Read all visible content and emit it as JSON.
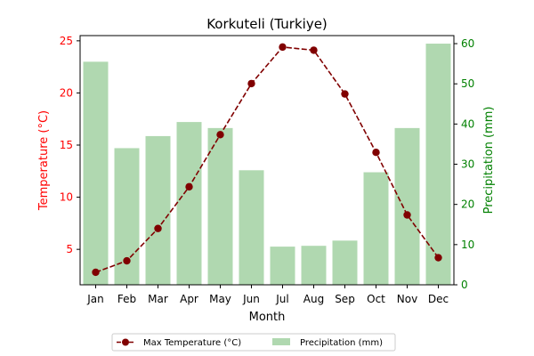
{
  "chart_data": {
    "type": "bar+line",
    "title": "Korkuteli (Turkiye)",
    "xlabel": "Month",
    "categories": [
      "Jan",
      "Feb",
      "Mar",
      "Apr",
      "May",
      "Jun",
      "Jul",
      "Aug",
      "Sep",
      "Oct",
      "Nov",
      "Dec"
    ],
    "series": [
      {
        "name": "Max Temperature (°C)",
        "type": "line",
        "axis": "left",
        "color": "#800000",
        "values": [
          2.8,
          3.9,
          7.0,
          11.0,
          16.0,
          20.9,
          24.4,
          24.1,
          19.9,
          14.3,
          8.3,
          4.2
        ]
      },
      {
        "name": "Precipitation (mm)",
        "type": "bar",
        "axis": "right",
        "color": "#b0d8b0",
        "values": [
          55.5,
          34.0,
          37.0,
          40.5,
          39.0,
          28.5,
          9.5,
          9.7,
          11.0,
          28.0,
          39.0,
          60.0
        ]
      }
    ],
    "y_left": {
      "label": "Temperature (°C)",
      "color": "#ff0000",
      "range": [
        1.6,
        25.5
      ],
      "ticks": [
        5,
        10,
        15,
        20,
        25
      ]
    },
    "y_right": {
      "label": "Precipitation (mm)",
      "color": "#008000",
      "range": [
        0,
        62.0
      ],
      "ticks": [
        0,
        10,
        20,
        30,
        40,
        50,
        60
      ]
    },
    "legend": {
      "position": "bottom-center"
    },
    "grid": false
  }
}
